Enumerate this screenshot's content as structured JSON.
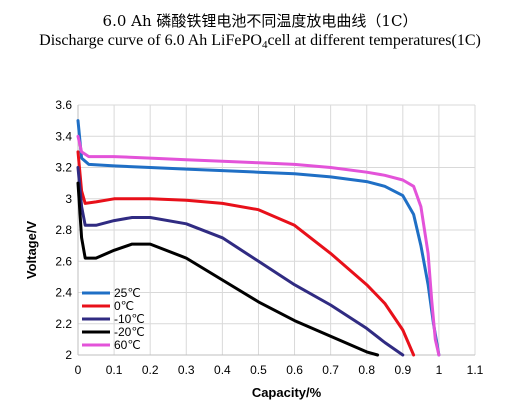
{
  "header": {
    "title_cn": "6.0 Ah 磷酸铁锂电池不同温度放电曲线（1C）",
    "title_en_main": "Discharge curve of 6.0 Ah LiFePO",
    "title_en_sub": "4",
    "title_en_rest": "cell at different temperatures(1C)"
  },
  "chart_data": {
    "type": "line",
    "title": "Discharge curve of 6.0 Ah LiFePO4cell at different temperatures(1C)",
    "xlabel": "Capacity/%",
    "ylabel": "Voltage/V",
    "xlim": [
      0,
      1.1
    ],
    "ylim": [
      2,
      3.6
    ],
    "x_ticks": [
      "0",
      "0.1",
      "0.2",
      "0.3",
      "0.4",
      "0.5",
      "0.6",
      "0.7",
      "0.8",
      "0.9",
      "1",
      "1.1"
    ],
    "y_ticks": [
      "2",
      "2.2",
      "2.4",
      "2.6",
      "2.8",
      "3",
      "3.2",
      "3.4",
      "3.6"
    ],
    "grid": true,
    "legend_position": "bottom-left",
    "series": [
      {
        "name": "25℃",
        "color": "#1f6fc5",
        "points": [
          [
            0,
            3.5
          ],
          [
            0.01,
            3.26
          ],
          [
            0.03,
            3.22
          ],
          [
            0.1,
            3.21
          ],
          [
            0.2,
            3.2
          ],
          [
            0.3,
            3.19
          ],
          [
            0.4,
            3.18
          ],
          [
            0.5,
            3.17
          ],
          [
            0.6,
            3.16
          ],
          [
            0.7,
            3.14
          ],
          [
            0.8,
            3.11
          ],
          [
            0.85,
            3.08
          ],
          [
            0.9,
            3.02
          ],
          [
            0.93,
            2.9
          ],
          [
            0.95,
            2.7
          ],
          [
            0.97,
            2.45
          ],
          [
            0.985,
            2.2
          ],
          [
            1.0,
            2.0
          ]
        ]
      },
      {
        "name": "0℃",
        "color": "#e8101a",
        "points": [
          [
            0,
            3.3
          ],
          [
            0.01,
            3.05
          ],
          [
            0.02,
            2.97
          ],
          [
            0.05,
            2.98
          ],
          [
            0.1,
            3.0
          ],
          [
            0.2,
            3.0
          ],
          [
            0.3,
            2.99
          ],
          [
            0.4,
            2.97
          ],
          [
            0.5,
            2.93
          ],
          [
            0.6,
            2.83
          ],
          [
            0.7,
            2.65
          ],
          [
            0.8,
            2.45
          ],
          [
            0.85,
            2.33
          ],
          [
            0.9,
            2.16
          ],
          [
            0.93,
            2.0
          ]
        ]
      },
      {
        "name": "-10℃",
        "color": "#302b82",
        "points": [
          [
            0,
            3.2
          ],
          [
            0.01,
            2.95
          ],
          [
            0.02,
            2.83
          ],
          [
            0.05,
            2.83
          ],
          [
            0.1,
            2.86
          ],
          [
            0.15,
            2.88
          ],
          [
            0.2,
            2.88
          ],
          [
            0.3,
            2.84
          ],
          [
            0.4,
            2.75
          ],
          [
            0.5,
            2.6
          ],
          [
            0.6,
            2.45
          ],
          [
            0.7,
            2.32
          ],
          [
            0.8,
            2.17
          ],
          [
            0.85,
            2.08
          ],
          [
            0.9,
            2.0
          ]
        ]
      },
      {
        "name": "-20℃",
        "color": "#000000",
        "points": [
          [
            0,
            3.1
          ],
          [
            0.01,
            2.75
          ],
          [
            0.02,
            2.62
          ],
          [
            0.05,
            2.62
          ],
          [
            0.1,
            2.67
          ],
          [
            0.15,
            2.71
          ],
          [
            0.2,
            2.71
          ],
          [
            0.3,
            2.62
          ],
          [
            0.4,
            2.48
          ],
          [
            0.5,
            2.34
          ],
          [
            0.6,
            2.22
          ],
          [
            0.7,
            2.12
          ],
          [
            0.8,
            2.02
          ],
          [
            0.83,
            2.0
          ]
        ]
      },
      {
        "name": "60℃",
        "color": "#e353d9",
        "points": [
          [
            0,
            3.4
          ],
          [
            0.01,
            3.3
          ],
          [
            0.03,
            3.27
          ],
          [
            0.1,
            3.27
          ],
          [
            0.2,
            3.26
          ],
          [
            0.3,
            3.25
          ],
          [
            0.4,
            3.24
          ],
          [
            0.5,
            3.23
          ],
          [
            0.6,
            3.22
          ],
          [
            0.7,
            3.2
          ],
          [
            0.8,
            3.17
          ],
          [
            0.85,
            3.15
          ],
          [
            0.9,
            3.12
          ],
          [
            0.93,
            3.08
          ],
          [
            0.95,
            2.95
          ],
          [
            0.97,
            2.65
          ],
          [
            0.98,
            2.35
          ],
          [
            0.99,
            2.1
          ],
          [
            1.0,
            2.0
          ]
        ]
      }
    ]
  }
}
